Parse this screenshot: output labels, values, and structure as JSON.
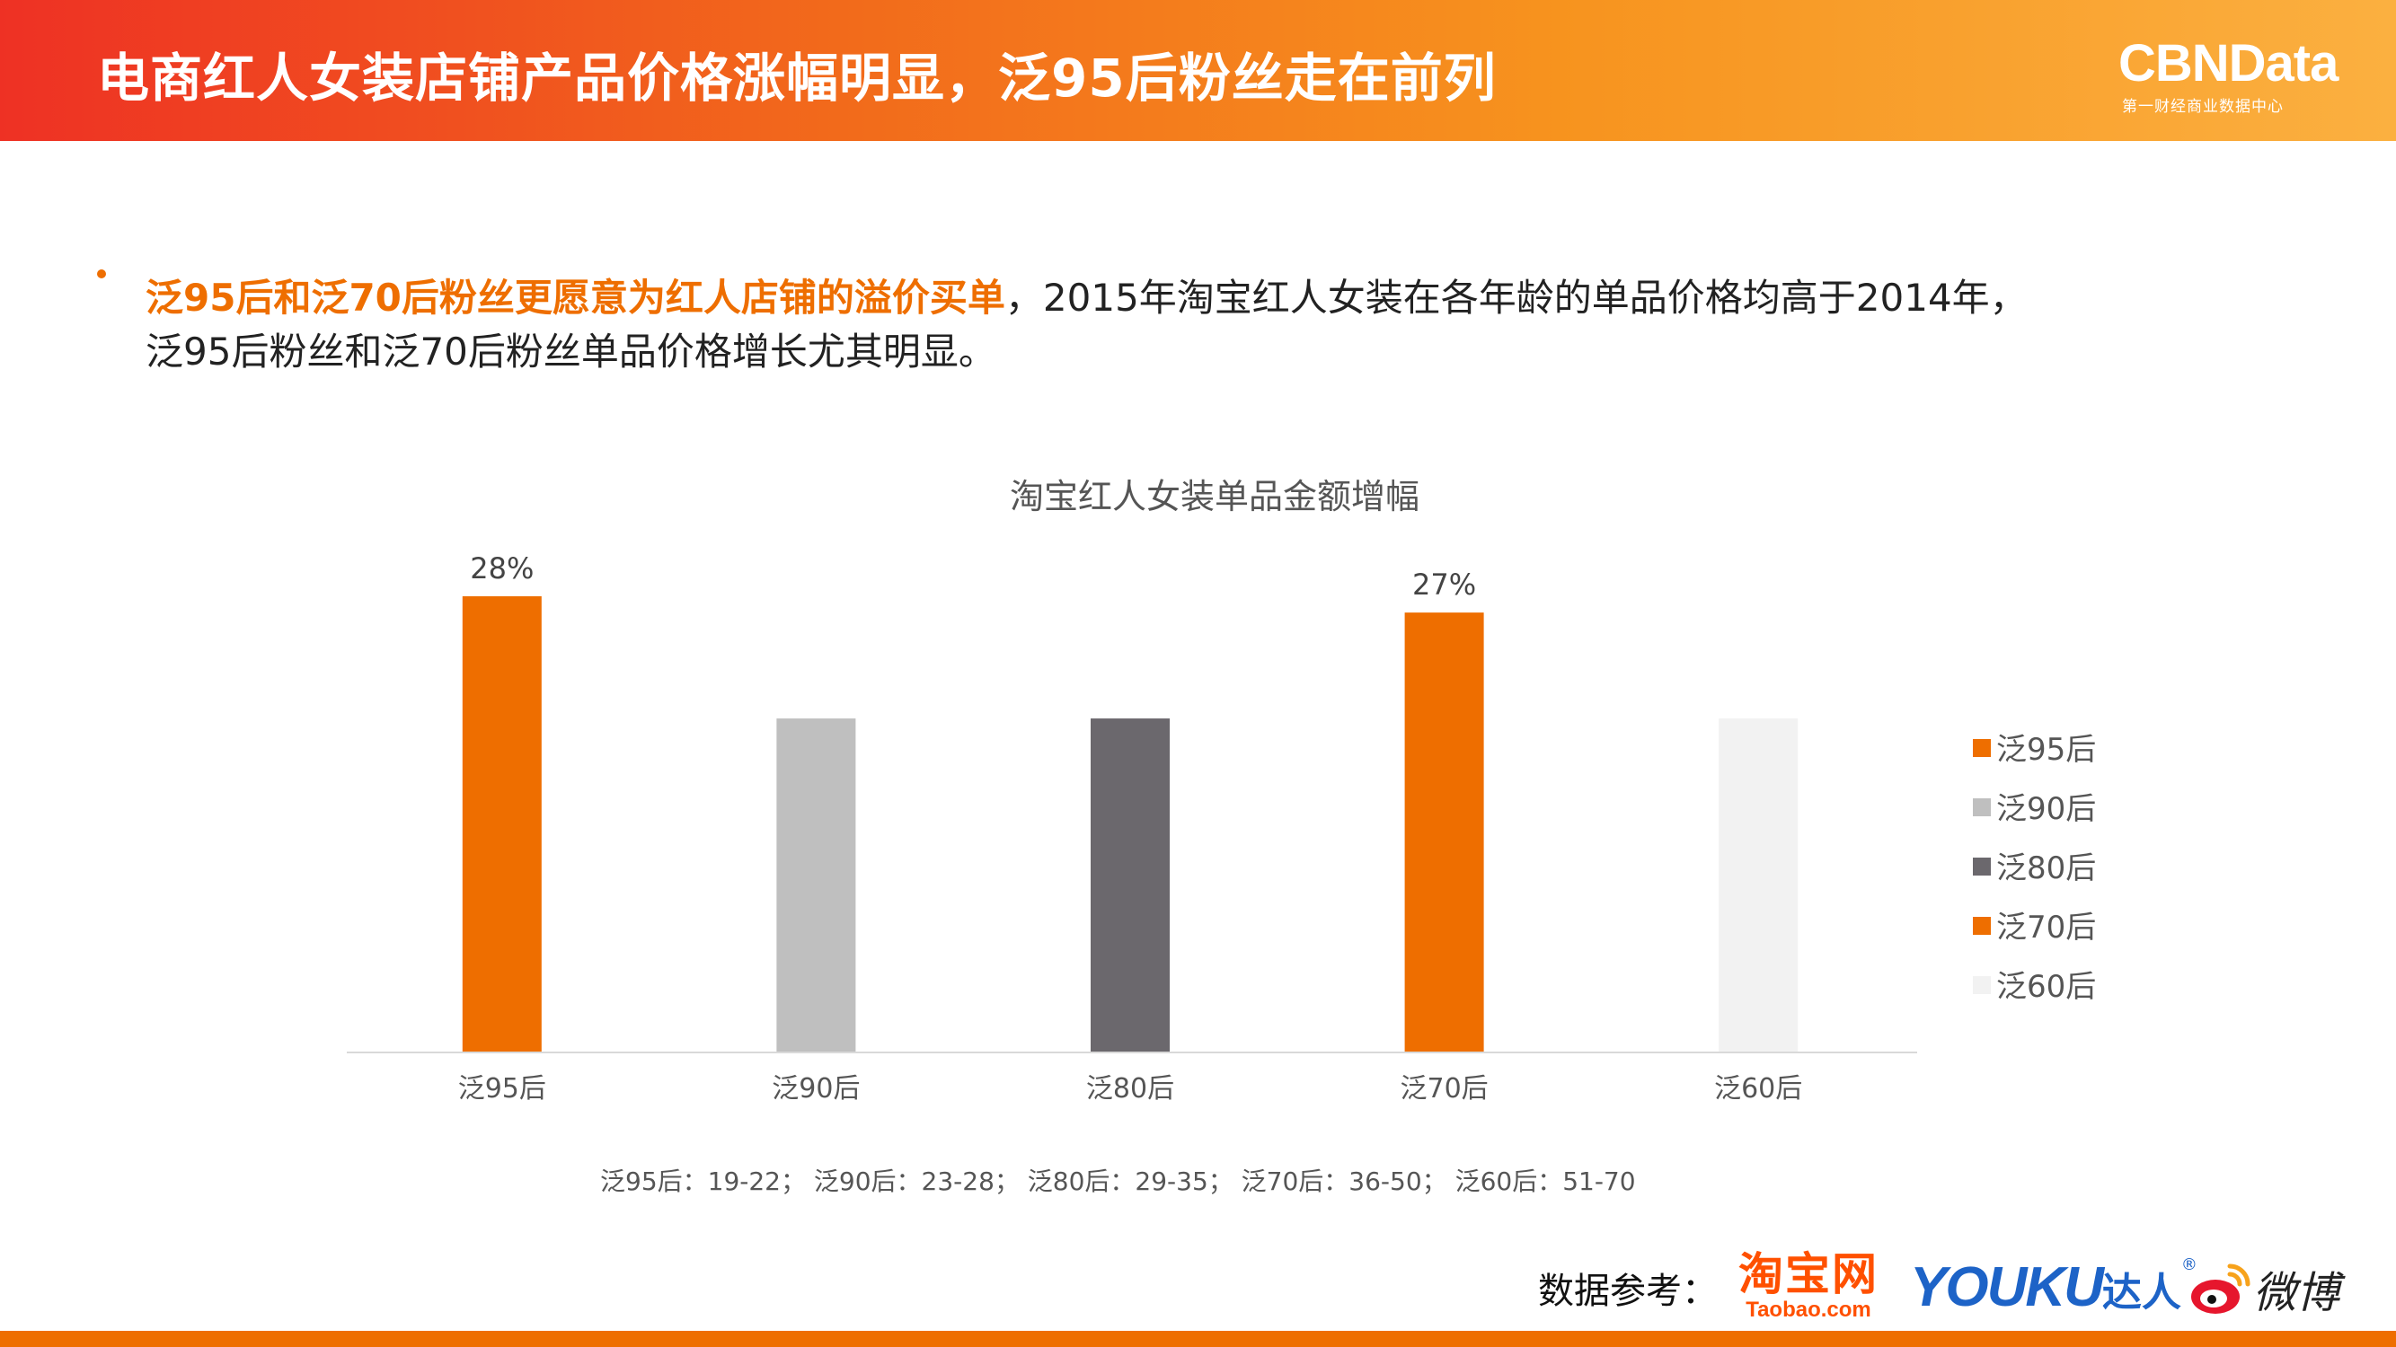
{
  "header": {
    "title": "电商红人女装店铺产品价格涨幅明显，泛95后粉丝走在前列",
    "brand": "CBNData",
    "brand_sub": "第一财经商业数据中心"
  },
  "bullet": {
    "highlight": "泛95后和泛70后粉丝更愿意为红人店铺的溢价买单",
    "rest_line1": "，2015年淘宝红人女装在各年龄的单品价格均高于2014年，",
    "rest_line2": "泛95后粉丝和泛70后粉丝单品价格增长尤其明显。"
  },
  "chart_data": {
    "type": "bar",
    "title": "淘宝红人女装单品金额增幅",
    "categories": [
      "泛95后",
      "泛90后",
      "泛80后",
      "泛70后",
      "泛60后"
    ],
    "values": [
      0.28,
      0.205,
      0.205,
      0.27,
      0.205
    ],
    "data_labels": [
      "28%",
      "",
      "",
      "27%",
      ""
    ],
    "colors": [
      "#ee6e00",
      "#bfbfbf",
      "#6b686d",
      "#ee6e00",
      "#f2f2f2"
    ],
    "ylim": [
      0,
      0.3
    ],
    "grid": false,
    "legend": {
      "position": "right",
      "entries": [
        "泛95后",
        "泛90后",
        "泛80后",
        "泛70后",
        "泛60后"
      ]
    },
    "xlabel": "",
    "ylabel": ""
  },
  "footnote": "泛95后：19-22；  泛90后：23-28；  泛80后：29-35；   泛70后：36-50；   泛60后：51-70",
  "source": {
    "label": "数据参考：",
    "taobao": "淘宝网",
    "taobao_domain": "Taobao.com",
    "youku": "YOUKU",
    "youku_suffix": "达人",
    "weibo": "微博"
  }
}
